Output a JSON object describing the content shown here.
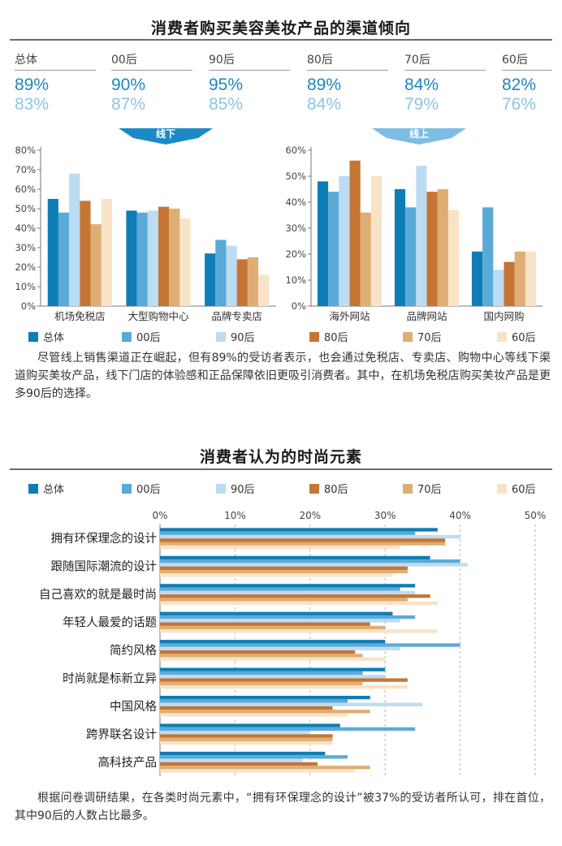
{
  "section1": {
    "title": "消费者购买美容美妆产品的渠道倾向",
    "stats": [
      {
        "label": "总体",
        "offline": "89%",
        "online": "83%"
      },
      {
        "label": "00后",
        "offline": "90%",
        "online": "87%"
      },
      {
        "label": "90后",
        "offline": "95%",
        "online": "85%"
      },
      {
        "label": "80后",
        "offline": "89%",
        "online": "84%"
      },
      {
        "label": "70后",
        "offline": "84%",
        "online": "79%"
      },
      {
        "label": "60后",
        "offline": "82%",
        "online": "76%"
      }
    ],
    "offline_tag": "线下",
    "online_tag": "线上",
    "paragraph": "尽管线上销售渠道正在崛起，但有89%的受访者表示，也会通过免税店、专卖店、购物中心等线下渠道购买美妆产品，线下门店的体验感和正品保障依旧更吸引消费者。其中，在机场免税店购买美妆产品是更多90后的选择。"
  },
  "section2": {
    "title": "消费者认为的时尚元素",
    "paragraph": "根据问卷调研结果，在各类时尚元素中，“拥有环保理念的设计”被37%的受访者所认可，排在首位，其中90后的人数占比最多。"
  },
  "legend": [
    {
      "name": "总体",
      "color": "#0f7db5"
    },
    {
      "name": "00后",
      "color": "#5aaad8"
    },
    {
      "name": "90后",
      "color": "#bcdcf2"
    },
    {
      "name": "80后",
      "color": "#c57534"
    },
    {
      "name": "70后",
      "color": "#dfae74"
    },
    {
      "name": "60后",
      "color": "#f8e3c6"
    }
  ],
  "chart_data": [
    {
      "type": "bar",
      "title": "线下",
      "categories": [
        "机场免税店",
        "大型购物中心",
        "品牌专卖店"
      ],
      "ylim": [
        0,
        80
      ],
      "yticks": [
        "0%",
        "10%",
        "20%",
        "30%",
        "40%",
        "50%",
        "60%",
        "70%",
        "80%"
      ],
      "series": [
        {
          "name": "总体",
          "values": [
            55,
            49,
            27
          ]
        },
        {
          "name": "00后",
          "values": [
            48,
            48,
            34
          ]
        },
        {
          "name": "90后",
          "values": [
            68,
            49,
            31
          ]
        },
        {
          "name": "80后",
          "values": [
            54,
            51,
            24
          ]
        },
        {
          "name": "70后",
          "values": [
            42,
            50,
            25
          ]
        },
        {
          "name": "60后",
          "values": [
            55,
            45,
            16
          ]
        }
      ]
    },
    {
      "type": "bar",
      "title": "线上",
      "categories": [
        "海外网站",
        "品牌网站",
        "国内网购"
      ],
      "ylim": [
        0,
        60
      ],
      "yticks": [
        "0%",
        "10%",
        "20%",
        "30%",
        "40%",
        "50%",
        "60%"
      ],
      "series": [
        {
          "name": "总体",
          "values": [
            48,
            45,
            21
          ]
        },
        {
          "name": "00后",
          "values": [
            44,
            38,
            38
          ]
        },
        {
          "name": "90后",
          "values": [
            50,
            54,
            14
          ]
        },
        {
          "name": "80后",
          "values": [
            56,
            44,
            17
          ]
        },
        {
          "name": "70后",
          "values": [
            36,
            45,
            21
          ]
        },
        {
          "name": "60后",
          "values": [
            50,
            37,
            21
          ]
        }
      ]
    },
    {
      "type": "bar",
      "orientation": "horizontal",
      "title": "消费者认为的时尚元素",
      "categories": [
        "拥有环保理念的设计",
        "跟随国际潮流的设计",
        "自己喜欢的就是最时尚",
        "年轻人最爱的话题",
        "简约风格",
        "时尚就是标新立异",
        "中国风格",
        "跨界联名设计",
        "高科技产品"
      ],
      "xlim": [
        0,
        50
      ],
      "xticks": [
        "0%",
        "10%",
        "20%",
        "30%",
        "40%",
        "50%"
      ],
      "series": [
        {
          "name": "总体",
          "values": [
            37,
            36,
            34,
            31,
            30,
            30,
            28,
            24,
            22
          ]
        },
        {
          "name": "00后",
          "values": [
            34,
            40,
            32,
            34,
            40,
            27,
            25,
            34,
            25
          ]
        },
        {
          "name": "90后",
          "values": [
            40,
            41,
            34,
            32,
            32,
            30,
            35,
            20,
            19
          ]
        },
        {
          "name": "80后",
          "values": [
            38,
            33,
            36,
            28,
            26,
            33,
            23,
            23,
            21
          ]
        },
        {
          "name": "70后",
          "values": [
            38,
            33,
            33,
            30,
            27,
            27,
            28,
            23,
            28
          ]
        },
        {
          "name": "60后",
          "values": [
            32,
            31,
            37,
            37,
            30,
            33,
            25,
            23,
            26
          ]
        }
      ]
    }
  ]
}
